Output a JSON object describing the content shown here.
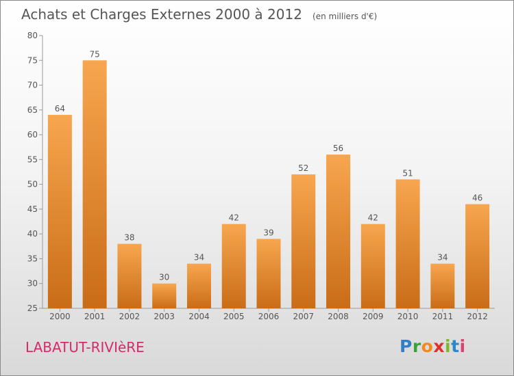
{
  "title": "Achats et Charges Externes 2000 à 2012",
  "unit": "(en milliers d'€)",
  "commune": "LABATUT-RIVIèRE",
  "brand": {
    "letters": [
      "P",
      "r",
      "o",
      "x",
      "i",
      "t",
      "i"
    ],
    "colors": [
      "#2f80c8",
      "#3aa03a",
      "#f08a1e",
      "#e0302a",
      "#7bb82c",
      "#2a88cc",
      "#e04070"
    ]
  },
  "colors": {
    "bar_top": "#f7a64f",
    "bar_bottom": "#c96c17",
    "text": "#555555",
    "brand_red": "#d42a6a"
  },
  "chart_data": {
    "type": "bar",
    "title": "Achats et Charges Externes 2000 à 2012",
    "xlabel": "",
    "ylabel": "(en milliers d'€)",
    "ylim": [
      25,
      80
    ],
    "yticks": [
      25,
      30,
      35,
      40,
      45,
      50,
      55,
      60,
      65,
      70,
      75,
      80
    ],
    "grid": false,
    "categories": [
      "2000",
      "2001",
      "2002",
      "2003",
      "2004",
      "2005",
      "2006",
      "2007",
      "2008",
      "2009",
      "2010",
      "2011",
      "2012"
    ],
    "values": [
      64,
      75,
      38,
      30,
      34,
      42,
      39,
      52,
      56,
      42,
      51,
      34,
      46
    ]
  }
}
